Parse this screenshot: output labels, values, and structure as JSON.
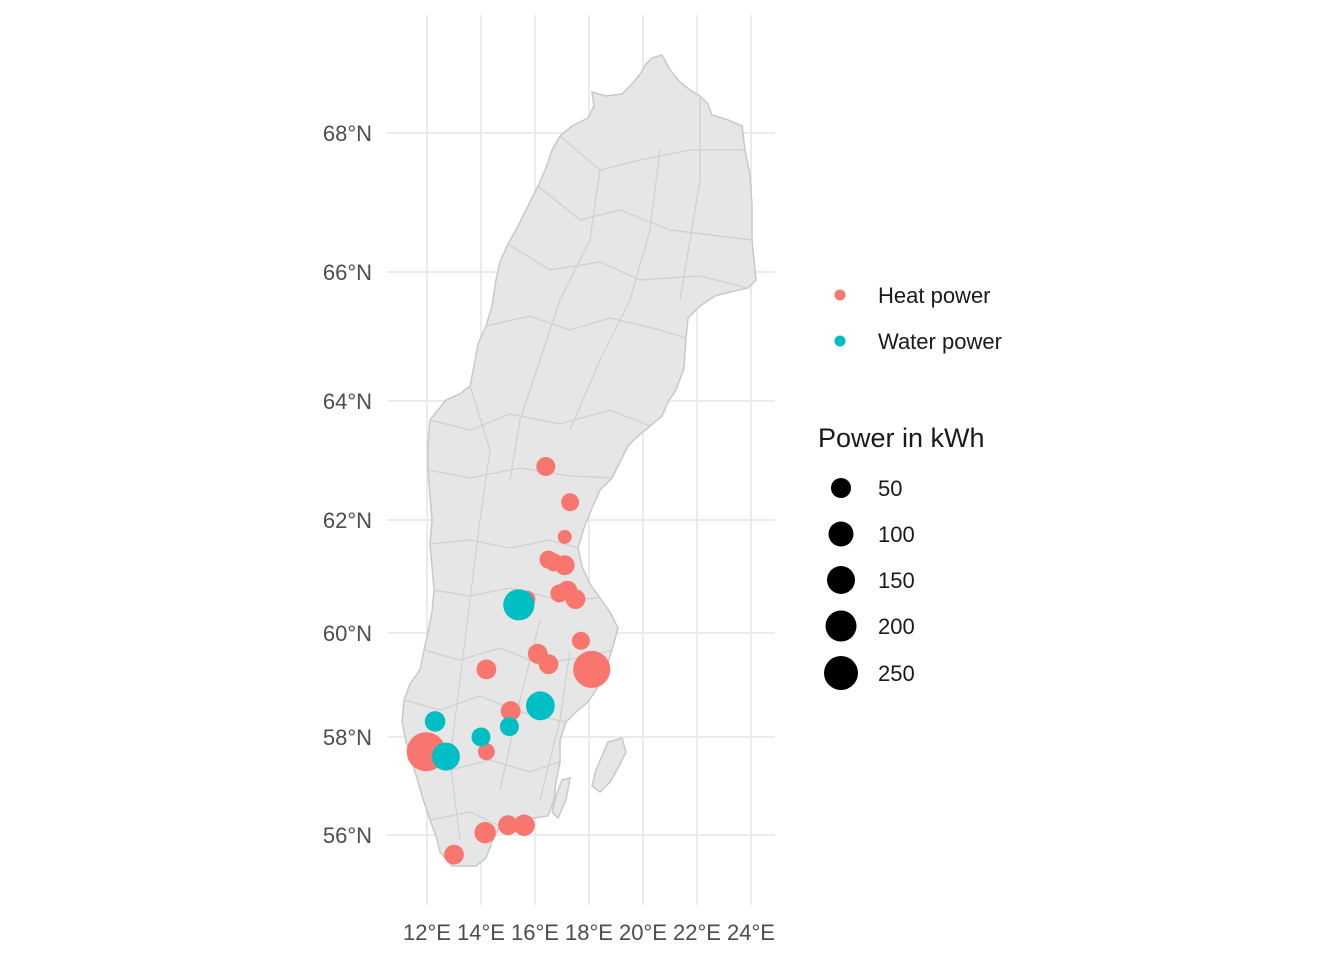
{
  "map": {
    "region": "Sweden",
    "x_ticks": [
      "12°E",
      "14°E",
      "16°E",
      "18°E",
      "20°E",
      "22°E",
      "24°E"
    ],
    "y_ticks": [
      "56°N",
      "58°N",
      "60°N",
      "62°N",
      "64°N",
      "66°N",
      "68°N"
    ],
    "land_color": "#e6e6e6",
    "border_color": "#c8c8c8",
    "grid": true
  },
  "chart_data": {
    "type": "scatter",
    "x_unit": "longitude °E",
    "y_unit": "latitude °N",
    "series": [
      {
        "name": "Heat power",
        "color": "#F8766D",
        "points": [
          {
            "lon": 16.4,
            "lat": 62.9,
            "kwh": 25
          },
          {
            "lon": 17.3,
            "lat": 62.3,
            "kwh": 20
          },
          {
            "lon": 17.1,
            "lat": 61.7,
            "kwh": 5
          },
          {
            "lon": 16.5,
            "lat": 61.3,
            "kwh": 20
          },
          {
            "lon": 16.7,
            "lat": 61.25,
            "kwh": 20
          },
          {
            "lon": 17.1,
            "lat": 61.2,
            "kwh": 30
          },
          {
            "lon": 15.7,
            "lat": 60.6,
            "kwh": 15
          },
          {
            "lon": 16.9,
            "lat": 60.7,
            "kwh": 20
          },
          {
            "lon": 17.2,
            "lat": 60.75,
            "kwh": 30
          },
          {
            "lon": 17.5,
            "lat": 60.6,
            "kwh": 30
          },
          {
            "lon": 17.7,
            "lat": 59.85,
            "kwh": 20
          },
          {
            "lon": 16.1,
            "lat": 59.6,
            "kwh": 30
          },
          {
            "lon": 16.5,
            "lat": 59.4,
            "kwh": 30
          },
          {
            "lon": 18.1,
            "lat": 59.3,
            "kwh": 230
          },
          {
            "lon": 14.2,
            "lat": 59.3,
            "kwh": 30
          },
          {
            "lon": 15.1,
            "lat": 58.5,
            "kwh": 30
          },
          {
            "lon": 11.97,
            "lat": 57.7,
            "kwh": 260
          },
          {
            "lon": 14.2,
            "lat": 57.7,
            "kwh": 15
          },
          {
            "lon": 15.0,
            "lat": 56.2,
            "kwh": 30
          },
          {
            "lon": 15.6,
            "lat": 56.2,
            "kwh": 40
          },
          {
            "lon": 14.15,
            "lat": 56.05,
            "kwh": 40
          },
          {
            "lon": 13.0,
            "lat": 55.6,
            "kwh": 30
          }
        ]
      },
      {
        "name": "Water power",
        "color": "#00BFC4",
        "points": [
          {
            "lon": 15.4,
            "lat": 60.5,
            "kwh": 140
          },
          {
            "lon": 16.2,
            "lat": 58.6,
            "kwh": 110
          },
          {
            "lon": 15.05,
            "lat": 58.2,
            "kwh": 25
          },
          {
            "lon": 12.3,
            "lat": 58.3,
            "kwh": 35
          },
          {
            "lon": 14.0,
            "lat": 58.0,
            "kwh": 25
          },
          {
            "lon": 12.7,
            "lat": 57.6,
            "kwh": 100
          }
        ]
      }
    ],
    "color_legend": [
      "Heat power",
      "Water power"
    ],
    "size_legend": {
      "title": "Power in kWh",
      "values": [
        "50",
        "100",
        "150",
        "200",
        "250"
      ]
    }
  }
}
